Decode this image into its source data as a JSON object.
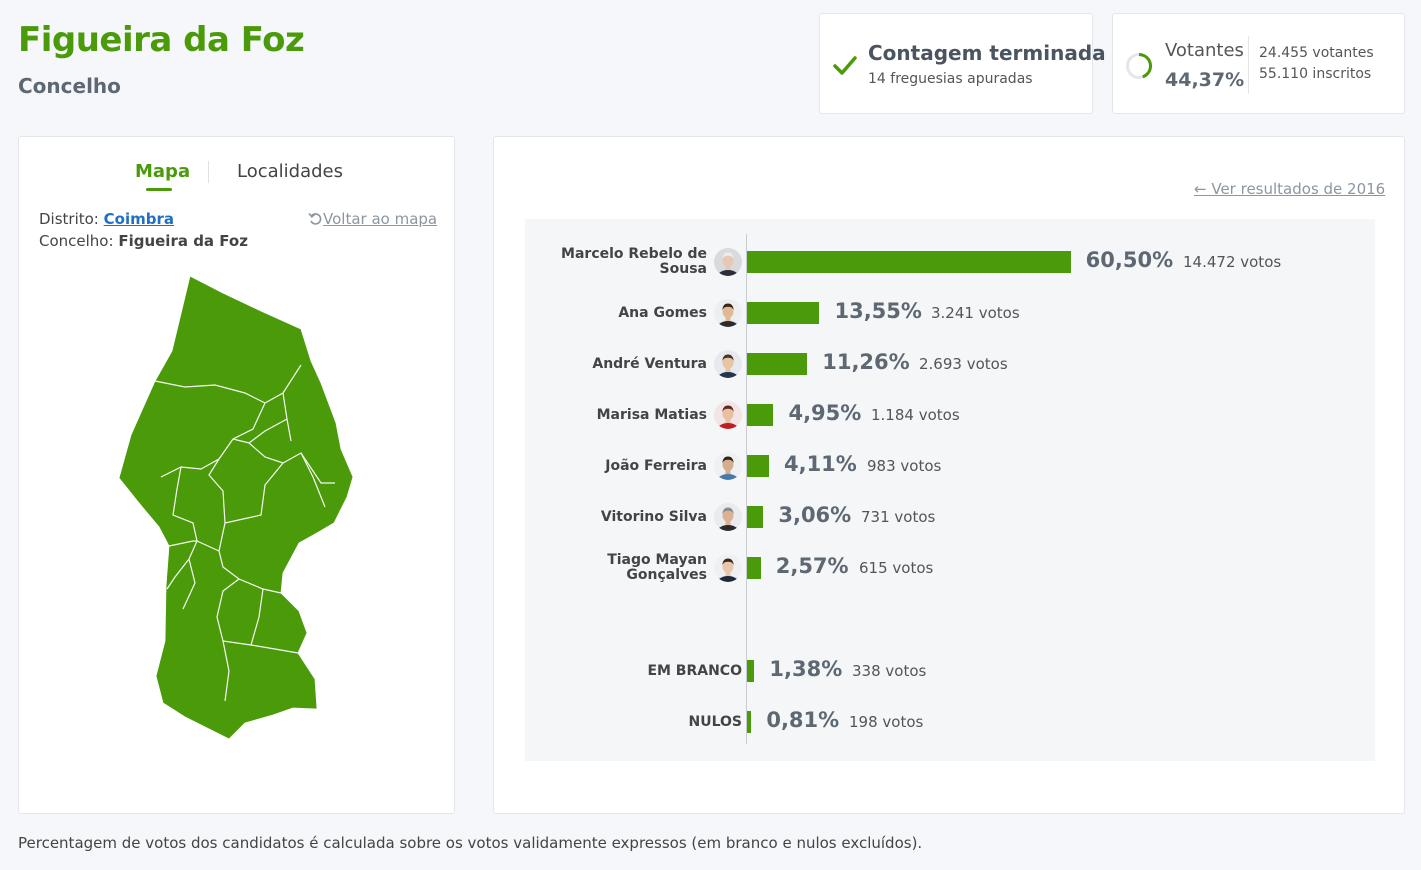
{
  "header": {
    "title": "Figueira da Foz",
    "subtitle": "Concelho"
  },
  "status": {
    "title": "Contagem terminada",
    "subtitle": "14 freguesias apuradas",
    "icon": "check-icon"
  },
  "turnout": {
    "label": "Votantes",
    "percent": "44,37%",
    "voters": "24.455 votantes",
    "registered": "55.110 inscritos",
    "fraction": 0.4437
  },
  "map_panel": {
    "tabs": [
      {
        "label": "Mapa",
        "active": true
      },
      {
        "label": "Localidades",
        "active": false
      }
    ],
    "district_label": "Distrito:",
    "district_value": "Coimbra",
    "municipality_label": "Concelho:",
    "municipality_value": "Figueira da Foz",
    "back_link": "Voltar ao mapa",
    "fill_color": "#4a9a0a"
  },
  "results": {
    "prev_link": "Ver resultados de 2016",
    "accent": "#4a9a0a",
    "candidates": [
      {
        "name": "Marcelo Rebelo de Sousa",
        "percent": "60,50%",
        "votes": "14.472 votos",
        "value": 60.5
      },
      {
        "name": "Ana Gomes",
        "percent": "13,55%",
        "votes": "3.241 votos",
        "value": 13.55
      },
      {
        "name": "André Ventura",
        "percent": "11,26%",
        "votes": "2.693 votos",
        "value": 11.26
      },
      {
        "name": "Marisa Matias",
        "percent": "4,95%",
        "votes": "1.184 votos",
        "value": 4.95
      },
      {
        "name": "João Ferreira",
        "percent": "4,11%",
        "votes": "983 votos",
        "value": 4.11
      },
      {
        "name": "Vitorino Silva",
        "percent": "3,06%",
        "votes": "731 votos",
        "value": 3.06
      },
      {
        "name": "Tiago Mayan Gonçalves",
        "percent": "2,57%",
        "votes": "615 votos",
        "value": 2.57
      }
    ],
    "others": [
      {
        "name": "EM BRANCO",
        "percent": "1,38%",
        "votes": "338 votos",
        "value": 1.38
      },
      {
        "name": "NULOS",
        "percent": "0,81%",
        "votes": "198 votos",
        "value": 0.81
      }
    ]
  },
  "footnote": "Percentagem de votos dos candidatos é calculada sobre os votos validamente expressos (em branco e nulos excluídos)."
}
